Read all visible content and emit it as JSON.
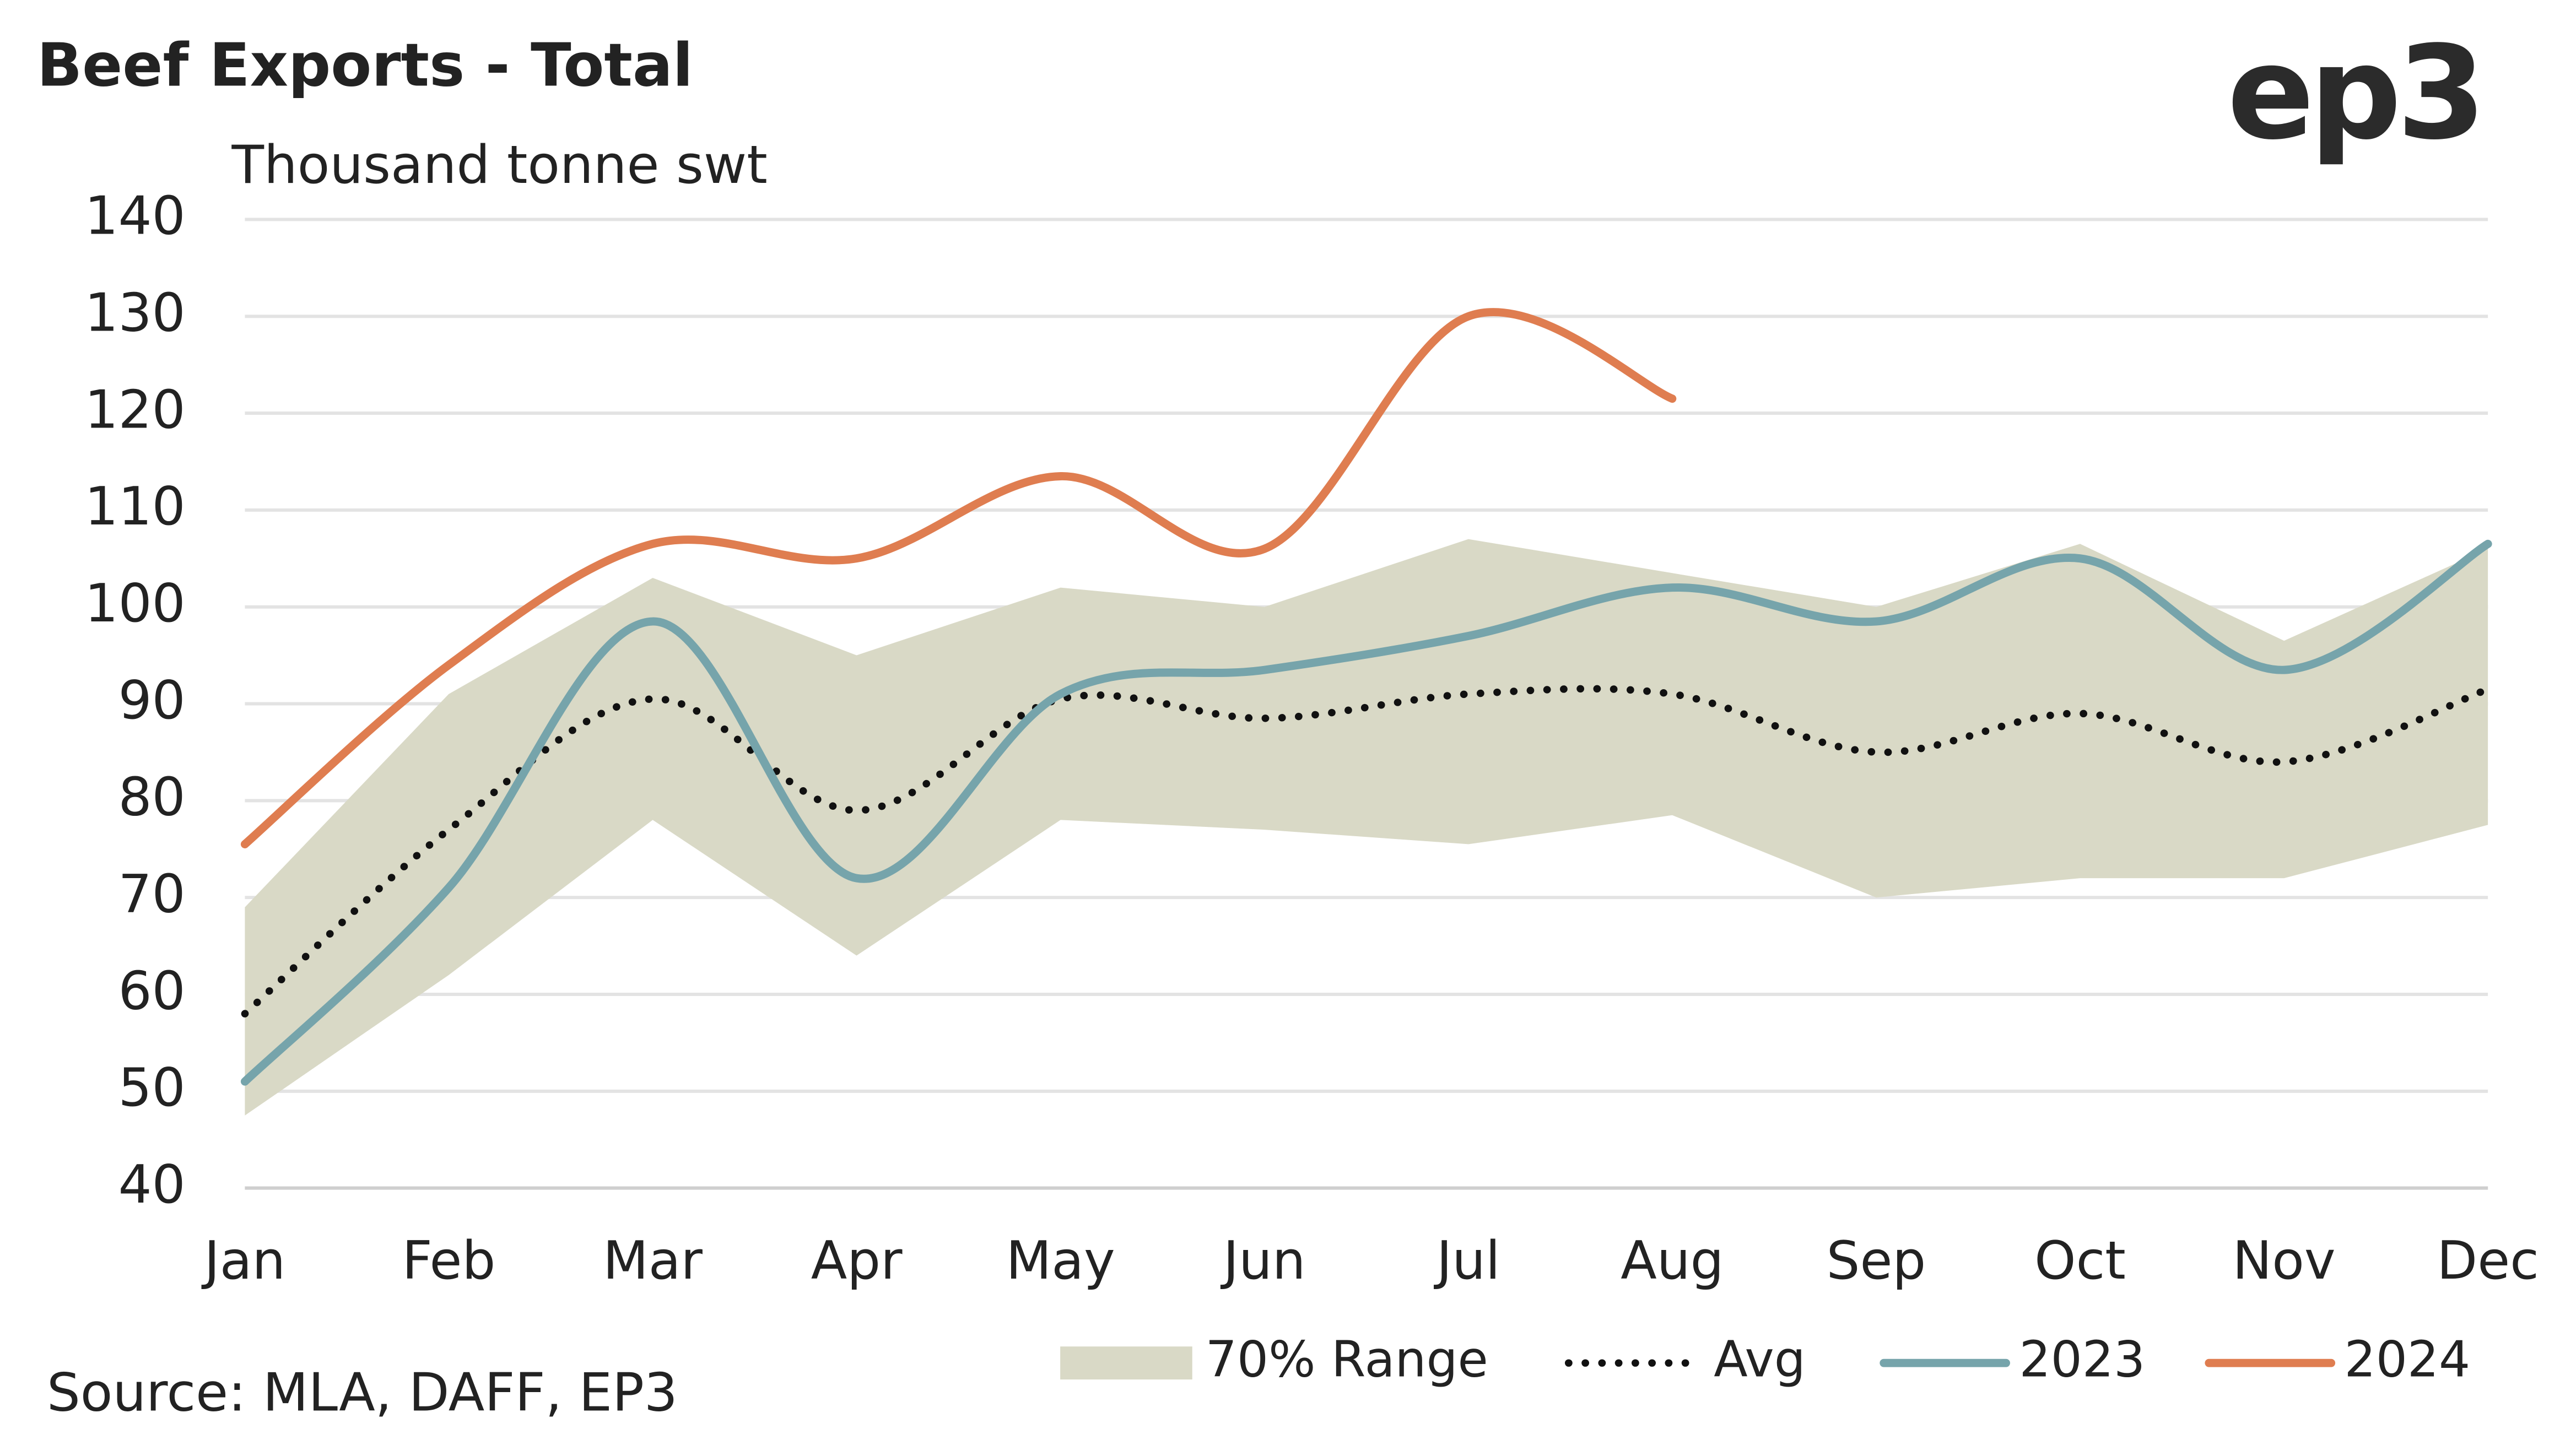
{
  "chart_data": {
    "type": "line",
    "title": "Beef Exports - Total",
    "subtitle": "Thousand tonne swt",
    "logo": "ep3",
    "source": "Source: MLA, DAFF, EP3",
    "categories": [
      "Jan",
      "Feb",
      "Mar",
      "Apr",
      "May",
      "Jun",
      "Jul",
      "Aug",
      "Sep",
      "Oct",
      "Nov",
      "Dec"
    ],
    "ylim": [
      40,
      140
    ],
    "yticks": [
      40,
      50,
      60,
      70,
      80,
      90,
      100,
      110,
      120,
      130,
      140
    ],
    "grid": true,
    "legend": "bottom",
    "range": {
      "name": "70% Range",
      "color": "#d9d9c6",
      "upper": [
        69,
        91,
        103,
        95,
        102,
        100,
        107,
        103.5,
        100,
        106.5,
        96.5,
        106
      ],
      "lower": [
        47.5,
        62,
        78,
        64,
        78,
        77,
        75.5,
        78.5,
        70,
        72,
        72,
        77.5
      ]
    },
    "series": [
      {
        "name": "Avg",
        "color": "#111111",
        "style": "dotted",
        "values": [
          58,
          77,
          90.5,
          79,
          90.5,
          88.5,
          91,
          91,
          85,
          89,
          84,
          91.5
        ]
      },
      {
        "name": "2023",
        "color": "#76a4ab",
        "style": "solid",
        "values": [
          51,
          71,
          98.5,
          72,
          91,
          93.5,
          97,
          102,
          98.5,
          105,
          93.5,
          106.5
        ]
      },
      {
        "name": "2024",
        "color": "#df7d50",
        "style": "solid",
        "values": [
          75.5,
          94,
          106.5,
          105,
          113.5,
          106,
          130,
          121.5,
          null,
          null,
          null,
          null
        ]
      }
    ]
  }
}
